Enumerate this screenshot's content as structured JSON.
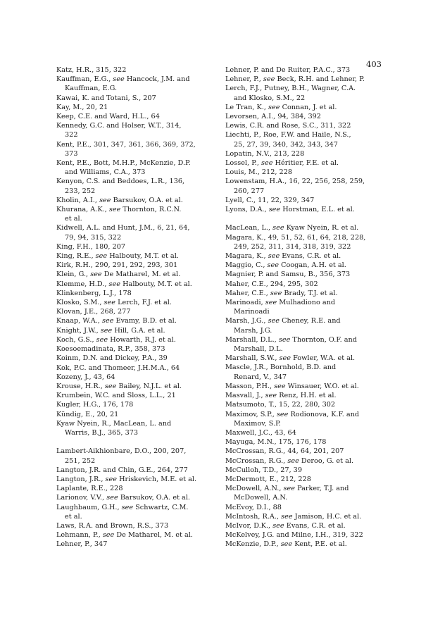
{
  "page_number": "403",
  "columns": {
    "left": [
      {
        "head": "Katz, H.R., 315, 322"
      },
      {
        "head": "Kauffman, E.G.,",
        "see": "see",
        "rest": "Hancock, J.M. and",
        "cont": [
          "Kauffman, E.G."
        ]
      },
      {
        "head": "Kawai, K. and Totani, S., 207"
      },
      {
        "head": "Kay, M., 20, 21"
      },
      {
        "head": "Keep, C.E. and Ward, H.L., 64"
      },
      {
        "head": "Kennedy, G.C. and Holser, W.T., 314,",
        "cont": [
          "322"
        ]
      },
      {
        "head": "Kent, P.E., 301, 347, 361, 366, 369, 372,",
        "cont": [
          "373"
        ]
      },
      {
        "head": "Kent, P.E., Bott, M.H.P., McKenzie, D.P.",
        "cont": [
          "and Williams, C.A., 373"
        ]
      },
      {
        "head": "Kenyon, C.S. and Beddoes, L.R., 136,",
        "cont": [
          "233, 252"
        ]
      },
      {
        "head": "Kholin, A.I.,",
        "see": "see",
        "rest": "Barsukov, O.A. et al."
      },
      {
        "head": "Khurana, A.K.,",
        "see": "see",
        "rest": "Thornton, R.C.N.",
        "cont": [
          "et al."
        ]
      },
      {
        "head": "Kidwell, A.L. and Hunt, J.M., 6, 21, 64,",
        "cont": [
          "79, 94, 315, 322"
        ]
      },
      {
        "head": "King, F.H., 180, 207"
      },
      {
        "head": "King, R.E.,",
        "see": "see",
        "rest": "Halbouty, M.T. et al."
      },
      {
        "head": "Kirk, R.H., 290, 291, 292, 293, 301"
      },
      {
        "head": "Klein, G.,",
        "see": "see",
        "rest": "De Matharel, M. et al."
      },
      {
        "head": "Klemme, H.D.,",
        "see": "see",
        "rest": "Halbouty, M.T. et al."
      },
      {
        "head": "Klinkenberg, L.J., 178"
      },
      {
        "head": "Klosko, S.M.,",
        "see": "see",
        "rest": "Lerch, F.J. et al."
      },
      {
        "head": "Klovan, J.E., 268, 277"
      },
      {
        "head": "Knaap, W.A.,",
        "see": "see",
        "rest": "Evamy, B.D. et al."
      },
      {
        "head": "Knight, J.W.,",
        "see": "see",
        "rest": "Hill, G.A. et al."
      },
      {
        "head": "Koch, G.S.,",
        "see": "see",
        "rest": "Howarth, R.J. et al."
      },
      {
        "head": "Koesoemadinata, R.P., 358, 373"
      },
      {
        "head": "Koinm, D.N. and Dickey, P.A., 39"
      },
      {
        "head": "Kok, P.C. and Thomeer, J.H.M.A., 64"
      },
      {
        "head": "Kozeny, J., 43, 64"
      },
      {
        "head": "Krouse, H.R.,",
        "see": "see",
        "rest": "Bailey, N.J.L. et al."
      },
      {
        "head": "Krumbein, W.C. and Sloss, L.L., 21"
      },
      {
        "head": "Kugler, H.G., 176, 178"
      },
      {
        "head": "Kündig, E., 20, 21"
      },
      {
        "head": "Kyaw Nyein, R., MacLean, L. and",
        "cont": [
          "Warris, B.J., 365, 373"
        ]
      },
      {
        "gap": true
      },
      {
        "head": "Lambert-Aikhionbare, D.O., 200, 207,",
        "cont": [
          "251, 252"
        ]
      },
      {
        "head": "Langton, J.R. and Chin, G.E., 264, 277"
      },
      {
        "head": "Langton, J.R.,",
        "see": "see",
        "rest": "Hriskevich, M.E. et al."
      },
      {
        "head": "Laplante, R.E., 228"
      },
      {
        "head": "Larionov, V.V.,",
        "see": "see",
        "rest": "Barsukov, O.A. et al."
      },
      {
        "head": "Laughbaum, G.H.,",
        "see": "see",
        "rest": "Schwartz, C.M.",
        "cont": [
          "et al."
        ]
      },
      {
        "head": "Laws, R.A. and Brown, R.S., 373"
      },
      {
        "head": "Lehmann, P.,",
        "see": "see",
        "rest": "De Matharel, M. et al."
      },
      {
        "head": "Lehner, P., 347"
      }
    ],
    "right": [
      {
        "head": "Lehner, P. and De Ruiter, P.A.C., 373"
      },
      {
        "head": "Lehner, P.,",
        "see": "see",
        "rest": "Beck, R.H. and Lehner, P."
      },
      {
        "head": "Lerch, F.J., Putney, B.H., Wagner, C.A.",
        "cont": [
          "and Klosko, S.M., 22"
        ]
      },
      {
        "head": "Le Tran, K.,",
        "see": "see",
        "rest": "Connan, J. et al."
      },
      {
        "head": "Levorsen, A.I., 94, 384, 392"
      },
      {
        "head": "Lewis, C.R. and Rose, S.C., 311, 322"
      },
      {
        "head": "Liechti, P., Roe, F.W. and Haile, N.S.,",
        "cont": [
          "25, 27, 39, 340, 342, 343, 347"
        ]
      },
      {
        "head": "Lopatin, N.V., 213, 228"
      },
      {
        "head": "Lossel, P.,",
        "see": "see",
        "rest": "Héritier, F.E. et al."
      },
      {
        "head": "Louis, M., 212, 228"
      },
      {
        "head": "Lowenstam, H.A., 16, 22, 256, 258, 259,",
        "cont": [
          "260, 277"
        ]
      },
      {
        "head": "Lyell, C., 11, 22, 329, 347"
      },
      {
        "head": "Lyons, D.A.,",
        "see": "see",
        "rest": "Horstman, E.L. et al."
      },
      {
        "gap": true
      },
      {
        "head": "MacLean, L.,",
        "see": "see",
        "rest": "Kyaw Nyein, R. et al."
      },
      {
        "head": "Magara, K., 49, 51, 52, 61, 64, 218, 228,",
        "cont": [
          "249, 252, 311, 314, 318, 319, 322"
        ]
      },
      {
        "head": "Magara, K.,",
        "see": "see",
        "rest": "Evans, C.R. et al."
      },
      {
        "head": "Maggio, C.,",
        "see": "see",
        "rest": "Coogan, A.H. et al."
      },
      {
        "head": "Magnier, P. and Samsu, B., 356, 373"
      },
      {
        "head": "Maher, C.E., 294, 295, 302"
      },
      {
        "head": "Maher, C.E.,",
        "see": "see",
        "rest": "Brady, T.J. et al."
      },
      {
        "head": "Marinoadi,",
        "see": "see",
        "rest": "Mulhadiono and",
        "cont": [
          "Marinoadi"
        ]
      },
      {
        "head": "Marsh, J.G.,",
        "see": "see",
        "rest": "Cheney, R.E. and",
        "cont": [
          "Marsh, J.G."
        ]
      },
      {
        "head": "Marshall, D.L.,",
        "see": "see",
        "rest": "Thornton, O.F. and",
        "cont": [
          "Marshall, D.L."
        ]
      },
      {
        "head": "Marshall, S.W.,",
        "see": "see",
        "rest": "Fowler, W.A. et al."
      },
      {
        "head": "Mascle, J.R., Bornhold, B.D. and",
        "cont": [
          "Renard, V., 347"
        ]
      },
      {
        "head": "Masson, P.H.,",
        "see": "see",
        "rest": "Winsauer, W.O. et al."
      },
      {
        "head": "Masvall, J.,",
        "see": "see",
        "rest": "Renz, H.H. et al."
      },
      {
        "head": "Matsumoto, T., 15, 22, 280, 302"
      },
      {
        "head": "Maximov, S.P.,",
        "see": "see",
        "rest": "Rodionova, K.F. and",
        "cont": [
          "Maximov, S.P."
        ]
      },
      {
        "head": "Maxwell, J.C., 43, 64"
      },
      {
        "head": "Mayuga, M.N., 175, 176, 178"
      },
      {
        "head": "McCrossan, R.G., 44, 64, 201, 207"
      },
      {
        "head": "McCrossan, R.G.,",
        "see": "see",
        "rest": "Deroo, G. et al."
      },
      {
        "head": "McCulloh, T.D., 27, 39"
      },
      {
        "head": "McDermott, E., 212, 228"
      },
      {
        "head": "McDowell, A.N.,",
        "see": "see",
        "rest": "Parker, T.J. and",
        "cont": [
          "McDowell, A.N."
        ]
      },
      {
        "head": "McEvoy, D.I., 88"
      },
      {
        "head": "McIntosh, R.A.,",
        "see": "see",
        "rest": "Jamison, H.C. et al."
      },
      {
        "head": "McIvor, D.K.,",
        "see": "see",
        "rest": "Evans, C.R. et al."
      },
      {
        "head": "McKelvey, J.G. and Milne, I.H., 319, 322"
      },
      {
        "head": "McKenzie, D.P.,",
        "see": "see",
        "rest": "Kent, P.E. et al."
      }
    ]
  }
}
